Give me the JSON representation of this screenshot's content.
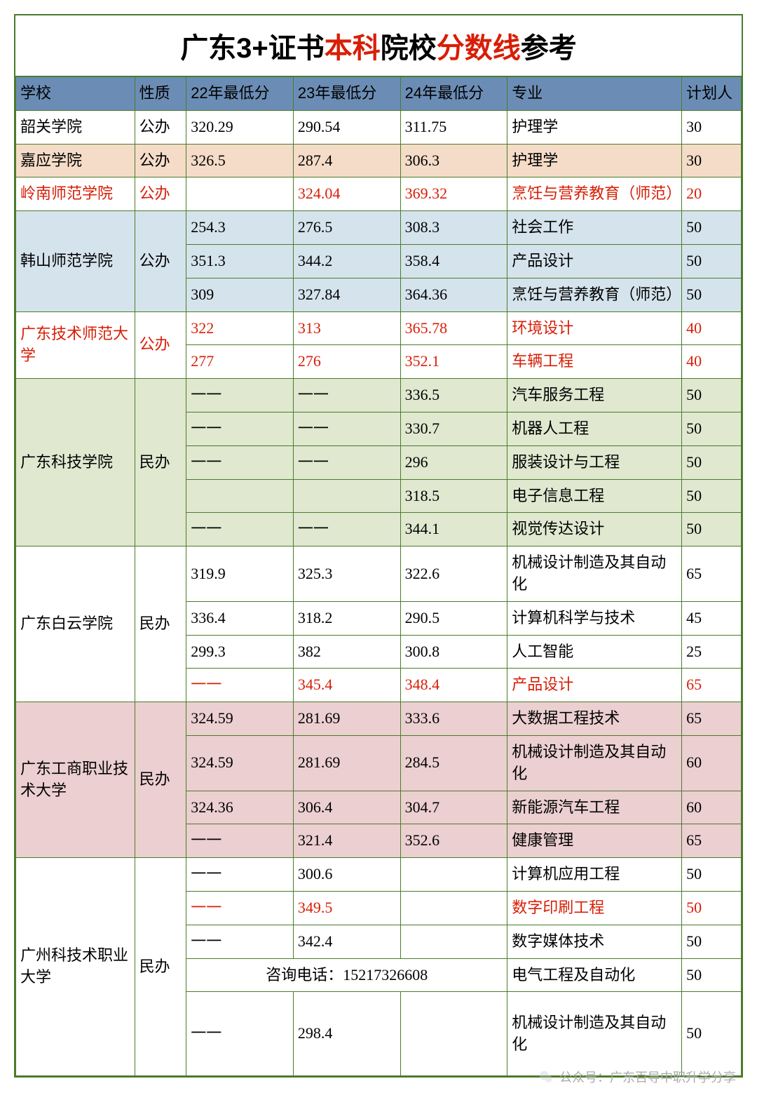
{
  "title_parts": [
    "广东3+证书",
    "本科",
    "院校",
    "分数线",
    "参考"
  ],
  "headers": [
    "学校",
    "性质",
    "22年最低分",
    "23年最低分",
    "24年最低分",
    "专业",
    "计划人"
  ],
  "colors": {
    "header_bg": "#6b8db5",
    "row_white": "#ffffff",
    "row_peach": "#f5dcc8",
    "row_lightblue": "#d5e3ed",
    "row_lightgreen": "#e0e8d0",
    "row_lightpink": "#eccfd0",
    "red": "#d81e06",
    "border": "#4a7c2a"
  },
  "contact_text": "咨询电话：15217326608",
  "watermark": "公众号：广东百导中职升学分享",
  "rows": [
    {
      "school": "韶关学院",
      "type": "公办",
      "s22": "320.29",
      "s23": "290.54",
      "s24": "311.75",
      "major": "护理学",
      "plan": "30",
      "bg": "row_white",
      "red": false,
      "schoolRowspan": 1,
      "typeRowspan": 1
    },
    {
      "school": "嘉应学院",
      "type": "公办",
      "s22": "326.5",
      "s23": "287.4",
      "s24": "306.3",
      "major": "护理学",
      "plan": "30",
      "bg": "row_peach",
      "red": false,
      "schoolRowspan": 1,
      "typeRowspan": 1
    },
    {
      "school": "岭南师范学院",
      "type": "公办",
      "s22": "",
      "s23": "324.04",
      "s24": "369.32",
      "major": "烹饪与营养教育（师范）",
      "plan": "20",
      "bg": "row_white",
      "red": true,
      "schoolRowspan": 1,
      "typeRowspan": 1
    },
    {
      "school": "韩山师范学院",
      "type": "公办",
      "s22": "254.3",
      "s23": "276.5",
      "s24": "308.3",
      "major": "社会工作",
      "plan": "50",
      "bg": "row_lightblue",
      "red": false,
      "schoolRowspan": 3,
      "typeRowspan": 3
    },
    {
      "s22": "351.3",
      "s23": "344.2",
      "s24": "358.4",
      "major": "产品设计",
      "plan": "50",
      "bg": "row_lightblue",
      "red": false
    },
    {
      "s22": "309",
      "s23": "327.84",
      "s24": "364.36",
      "major": "烹饪与营养教育（师范）",
      "plan": "50",
      "bg": "row_lightblue",
      "red": false
    },
    {
      "school": "广东技术师范大学",
      "type": "公办",
      "s22": "322",
      "s23": "313",
      "s24": "365.78",
      "major": "环境设计",
      "plan": "40",
      "bg": "row_white",
      "red": true,
      "schoolRowspan": 2,
      "typeRowspan": 2
    },
    {
      "s22": "277",
      "s23": "276",
      "s24": "352.1",
      "major": "车辆工程",
      "plan": "40",
      "bg": "row_white",
      "red": true
    },
    {
      "school": "广东科技学院",
      "type": "民办",
      "s22": "一一",
      "s23": "一一",
      "s24": "336.5",
      "major": "汽车服务工程",
      "plan": "50",
      "bg": "row_lightgreen",
      "red": false,
      "schoolRowspan": 5,
      "typeRowspan": 5
    },
    {
      "s22": "一一",
      "s23": "一一",
      "s24": "330.7",
      "major": "机器人工程",
      "plan": "50",
      "bg": "row_lightgreen",
      "red": false
    },
    {
      "s22": "一一",
      "s23": "一一",
      "s24": "296",
      "major": "服装设计与工程",
      "plan": "50",
      "bg": "row_lightgreen",
      "red": false
    },
    {
      "s22": "",
      "s23": "",
      "s24": "318.5",
      "major": "电子信息工程",
      "plan": "50",
      "bg": "row_lightgreen",
      "red": false
    },
    {
      "s22": "一一",
      "s23": "一一",
      "s24": "344.1",
      "major": "视觉传达设计",
      "plan": "50",
      "bg": "row_lightgreen",
      "red": false
    },
    {
      "school": "广东白云学院",
      "type": "民办",
      "s22": "319.9",
      "s23": "325.3",
      "s24": "322.6",
      "major": "机械设计制造及其自动化",
      "plan": "65",
      "bg": "row_white",
      "red": false,
      "schoolRowspan": 4,
      "typeRowspan": 4
    },
    {
      "s22": "336.4",
      "s23": "318.2",
      "s24": "290.5",
      "major": "计算机科学与技术",
      "plan": "45",
      "bg": "row_white",
      "red": false
    },
    {
      "s22": "299.3",
      "s23": "382",
      "s24": "300.8",
      "major": "人工智能",
      "plan": "25",
      "bg": "row_white",
      "red": false
    },
    {
      "s22": "一一",
      "s23": "345.4",
      "s24": "348.4",
      "major": "产品设计",
      "plan": "65",
      "bg": "row_white",
      "red": true
    },
    {
      "school": "广东工商职业技术大学",
      "type": "民办",
      "s22": "324.59",
      "s23": "281.69",
      "s24": "333.6",
      "major": "大数据工程技术",
      "plan": "65",
      "bg": "row_lightpink",
      "red": false,
      "schoolRowspan": 4,
      "typeRowspan": 4
    },
    {
      "s22": "324.59",
      "s23": "281.69",
      "s24": "284.5",
      "major": "机械设计制造及其自动化",
      "plan": "60",
      "bg": "row_lightpink",
      "red": false
    },
    {
      "s22": "324.36",
      "s23": "306.4",
      "s24": "304.7",
      "major": "新能源汽车工程",
      "plan": "60",
      "bg": "row_lightpink",
      "red": false
    },
    {
      "s22": "一一",
      "s23": "321.4",
      "s24": "352.6",
      "major": "健康管理",
      "plan": "65",
      "bg": "row_lightpink",
      "red": false
    },
    {
      "school": "广州科技术职业大学",
      "type": "民办",
      "s22": "一一",
      "s23": "300.6",
      "s24": "",
      "major": "计算机应用工程",
      "plan": "50",
      "bg": "row_white",
      "red": false,
      "schoolRowspan": 5,
      "typeRowspan": 5
    },
    {
      "s22": "一一",
      "s23": "349.5",
      "s24": "",
      "major": "数字印刷工程",
      "plan": "50",
      "bg": "row_white",
      "red": true
    },
    {
      "s22": "一一",
      "s23": "342.4",
      "s24": "",
      "major": "数字媒体技术",
      "plan": "50",
      "bg": "row_white",
      "red": false
    },
    {
      "contact": true,
      "major": "电气工程及自动化",
      "plan": "50",
      "bg": "row_white",
      "red": false
    },
    {
      "s22": "一一",
      "s23": "298.4",
      "s24": "",
      "major": "机械设计制造及其自动化",
      "plan": "50",
      "bg": "row_white",
      "red": false,
      "tall": true
    }
  ]
}
